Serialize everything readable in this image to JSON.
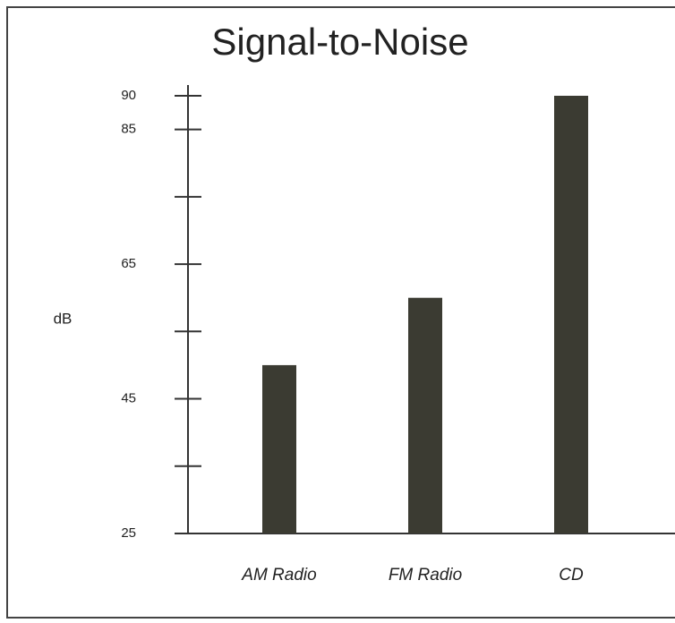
{
  "chart_data": {
    "type": "bar",
    "title": "Signal-to-Noise",
    "y_label": "dB",
    "categories": [
      "AM Radio",
      "FM Radio",
      "CD"
    ],
    "values": [
      50,
      60,
      90
    ],
    "color": "#3b3b32",
    "ylim": [
      25,
      90
    ],
    "yticks": [
      25,
      45,
      65,
      85,
      90
    ],
    "minor_yticks": [
      35,
      55,
      75
    ],
    "grid": false
  }
}
